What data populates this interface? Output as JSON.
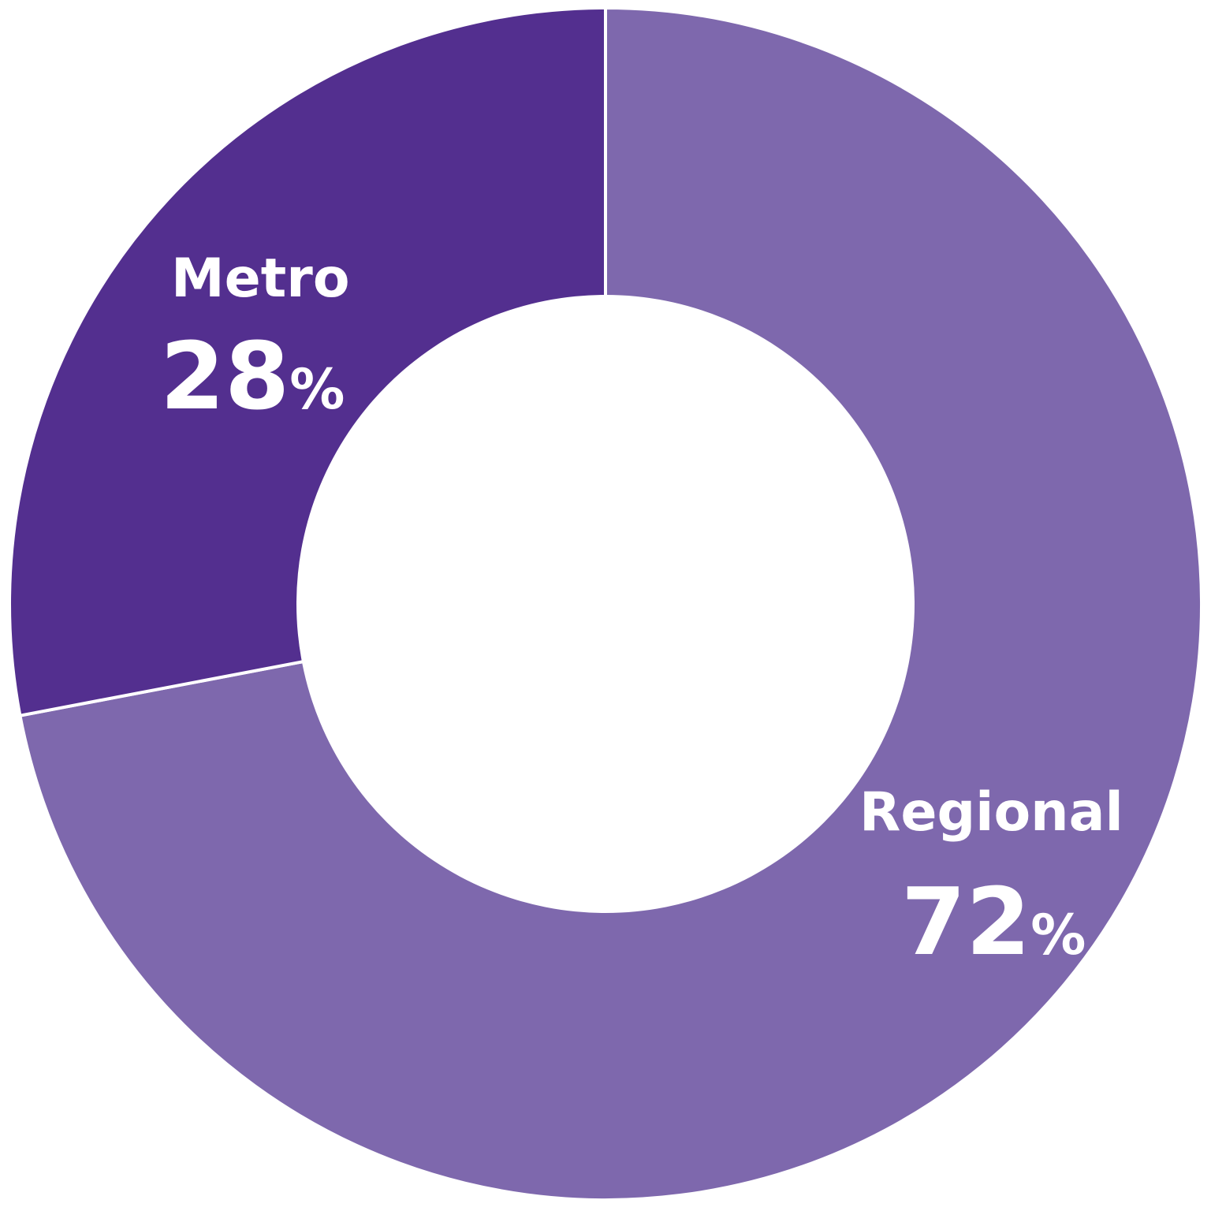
{
  "chart_data": {
    "type": "pie",
    "style": "donut",
    "start_angle_deg": 0,
    "direction": "clockwise",
    "slices": [
      {
        "label": "Regional",
        "value": 72,
        "value_text": "72",
        "unit": "%",
        "color": "#7e68ad"
      },
      {
        "label": "Metro",
        "value": 28,
        "value_text": "28",
        "unit": "%",
        "color": "#532f8f"
      }
    ],
    "background": "#ffffff",
    "legend": "none"
  }
}
